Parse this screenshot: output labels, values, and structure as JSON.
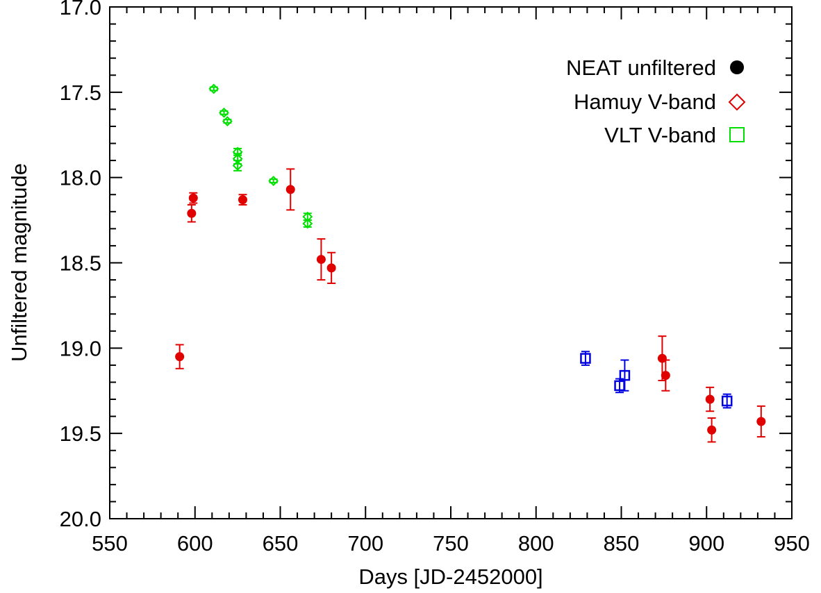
{
  "chart_data": {
    "type": "scatter",
    "title": "",
    "xlabel": "Days [JD-2452000]",
    "ylabel": "Unfiltered magnitude",
    "xlim": [
      550,
      950
    ],
    "ylim": [
      20.0,
      17.0
    ],
    "y_inverted": true,
    "x_major_ticks": [
      550,
      600,
      650,
      700,
      750,
      800,
      850,
      900,
      950
    ],
    "x_tick_labels": [
      "550",
      "600",
      "650",
      "700",
      "750",
      "800",
      "850",
      "900",
      "950"
    ],
    "y_major_ticks": [
      17.0,
      17.5,
      18.0,
      18.5,
      19.0,
      19.5,
      20.0
    ],
    "y_tick_labels": [
      "17.0",
      "17.5",
      "18.0",
      "18.5",
      "19.0",
      "19.5",
      "20.0"
    ],
    "grid": false,
    "legend_position": "top-right",
    "legend": [
      {
        "label": "NEAT unfiltered",
        "marker": "filled-circle",
        "color": "#000000"
      },
      {
        "label": "Hamuy V-band",
        "marker": "open-diamond",
        "color": "#e00000"
      },
      {
        "label": "VLT V-band",
        "marker": "open-square",
        "color": "#00e000"
      }
    ],
    "series": [
      {
        "marker": "filled-circle",
        "color": "#e00000",
        "points": [
          {
            "x": 591,
            "y": 19.05,
            "err": 0.07
          },
          {
            "x": 598,
            "y": 18.21,
            "err": 0.05
          },
          {
            "x": 599,
            "y": 18.12,
            "err": 0.03
          },
          {
            "x": 628,
            "y": 18.13,
            "err": 0.03
          },
          {
            "x": 656,
            "y": 18.07,
            "err": 0.12
          },
          {
            "x": 674,
            "y": 18.48,
            "err": 0.12
          },
          {
            "x": 680,
            "y": 18.53,
            "err": 0.09
          },
          {
            "x": 874,
            "y": 19.06,
            "err": 0.13
          },
          {
            "x": 876,
            "y": 19.16,
            "err": 0.09
          },
          {
            "x": 902,
            "y": 19.3,
            "err": 0.07
          },
          {
            "x": 903,
            "y": 19.48,
            "err": 0.07
          },
          {
            "x": 932,
            "y": 19.43,
            "err": 0.09
          }
        ]
      },
      {
        "marker": "open-diamond",
        "color": "#00e000",
        "points": [
          {
            "x": 611,
            "y": 17.48,
            "err": 0.01
          },
          {
            "x": 617,
            "y": 17.62,
            "err": 0.01
          },
          {
            "x": 619,
            "y": 17.67,
            "err": 0.01
          },
          {
            "x": 625,
            "y": 17.85,
            "err": 0.02
          },
          {
            "x": 625,
            "y": 17.89,
            "err": 0.03
          },
          {
            "x": 625,
            "y": 17.93,
            "err": 0.03
          },
          {
            "x": 646,
            "y": 18.02,
            "err": 0.01
          },
          {
            "x": 666,
            "y": 18.23,
            "err": 0.02
          },
          {
            "x": 666,
            "y": 18.27,
            "err": 0.02
          }
        ]
      },
      {
        "marker": "open-square",
        "color": "#0000e0",
        "points": [
          {
            "x": 829,
            "y": 19.06,
            "err": 0.04
          },
          {
            "x": 849,
            "y": 19.22,
            "err": 0.04
          },
          {
            "x": 852,
            "y": 19.16,
            "err": 0.09
          },
          {
            "x": 912,
            "y": 19.31,
            "err": 0.04
          }
        ]
      }
    ]
  }
}
